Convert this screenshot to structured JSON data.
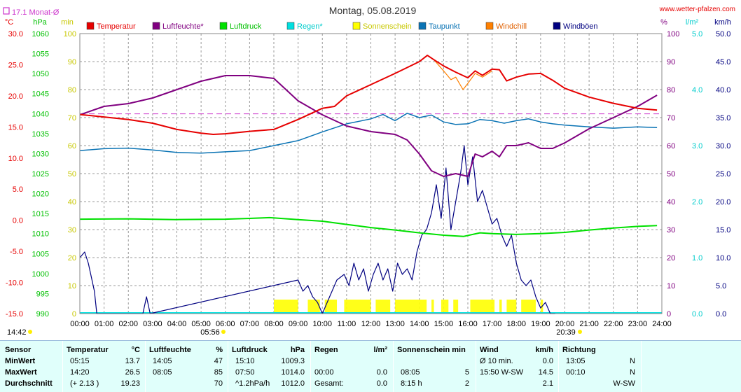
{
  "header": {
    "title": "Montag, 05.08.2019",
    "site": "www.wetter-pfalzen.com",
    "monthly_avg_label": "17.1 Monat-Ø",
    "sunrise": "05:56",
    "sunset": "20:39",
    "left_time": "14:42"
  },
  "colors": {
    "temperature": "#e60000",
    "humidity": "#800080",
    "pressure": "#00e000",
    "rain": "#00e0e0",
    "sunshine": "#ffff00",
    "dewpoint": "#0a73b4",
    "windchill": "#ff8000",
    "gusts": "#000080",
    "monthly_avg": "#cc33cc",
    "background_table": "#e0fffb"
  },
  "chart_data": {
    "type": "line",
    "title": "Montag, 05.08.2019",
    "axes": {
      "temp": {
        "unit": "°C",
        "min": -15,
        "max": 30,
        "ticks": [
          "30.0",
          "25.0",
          "20.0",
          "15.0",
          "10.0",
          "5.0",
          "0.0",
          "-5.0",
          "-10.0",
          "-15.0"
        ]
      },
      "pressure": {
        "unit": "hPa",
        "min": 990,
        "max": 1060,
        "ticks": [
          "1060",
          "1055",
          "1050",
          "1045",
          "1040",
          "1035",
          "1030",
          "1025",
          "1020",
          "1015",
          "1010",
          "1005",
          "1000",
          "995",
          "990"
        ]
      },
      "sun": {
        "unit": "min",
        "min": 0,
        "max": 100,
        "ticks": [
          "100",
          "90",
          "80",
          "70",
          "60",
          "50",
          "40",
          "30",
          "20",
          "10",
          "0"
        ]
      },
      "humidity": {
        "unit": "%",
        "min": 0,
        "max": 100,
        "ticks": [
          "100",
          "90",
          "80",
          "70",
          "60",
          "50",
          "40",
          "30",
          "20",
          "10",
          "0"
        ]
      },
      "rain": {
        "unit": "l/m²",
        "min": 0,
        "max": 5,
        "ticks": [
          "5.0",
          "4.0",
          "3.0",
          "2.0",
          "1.0",
          "0.0"
        ]
      },
      "wind": {
        "unit": "km/h",
        "min": 0,
        "max": 50,
        "ticks": [
          "50.0",
          "45.0",
          "40.0",
          "35.0",
          "30.0",
          "25.0",
          "20.0",
          "15.0",
          "10.0",
          "5.0",
          "0.0"
        ]
      }
    },
    "x_labels": [
      "00:00",
      "01:00",
      "02:00",
      "03:00",
      "04:00",
      "05:00",
      "06:00",
      "07:00",
      "08:00",
      "09:00",
      "10:00",
      "11:00",
      "12:00",
      "13:00",
      "14:00",
      "15:00",
      "16:00",
      "17:00",
      "18:00",
      "19:00",
      "20:00",
      "21:00",
      "22:00",
      "23:00",
      "24:00"
    ],
    "legend": [
      "Temperatur",
      "Luftfeuchte*",
      "Luftdruck",
      "Regen*",
      "Sonnenschein",
      "Taupunkt",
      "Windchill",
      "Windböen"
    ],
    "monthly_avg_temp": 17.1,
    "series": [
      {
        "name": "Temperatur",
        "axis": "temp",
        "x": [
          0,
          1,
          2,
          3,
          4,
          5,
          5.5,
          6,
          7,
          8,
          9,
          10,
          10.5,
          11,
          12,
          13,
          14,
          14.33,
          14.6,
          15,
          15.5,
          16,
          16.3,
          16.6,
          17,
          17.3,
          17.6,
          18,
          18.5,
          19,
          19.5,
          20,
          21,
          22,
          23,
          23.8
        ],
        "y": [
          17.0,
          16.6,
          16.2,
          15.6,
          14.6,
          14.0,
          13.8,
          13.9,
          14.3,
          14.6,
          16.2,
          18.0,
          18.3,
          20.0,
          21.8,
          23.6,
          25.5,
          26.5,
          25.8,
          24.8,
          23.8,
          22.9,
          24.0,
          23.3,
          24.3,
          24.2,
          22.4,
          23.0,
          23.5,
          23.6,
          22.5,
          21.2,
          19.8,
          18.8,
          18.0,
          17.7
        ]
      },
      {
        "name": "Luftfeuchte*",
        "axis": "humidity",
        "x": [
          0,
          1,
          2,
          3,
          4,
          5,
          5.5,
          6,
          7,
          8,
          8.5,
          9,
          10,
          10.5,
          11,
          12,
          13,
          13.5,
          14,
          14.5,
          15,
          15.5,
          16,
          16.3,
          16.6,
          17,
          17.3,
          17.6,
          18,
          18.5,
          19,
          19.5,
          20,
          21,
          22,
          23,
          23.8
        ],
        "y": [
          71,
          74,
          75,
          77,
          80,
          83,
          84,
          85,
          85,
          84,
          80,
          76,
          71,
          69,
          67,
          65,
          64,
          62,
          57,
          51,
          49,
          50,
          49,
          57,
          56,
          58,
          56,
          60,
          60,
          61,
          59,
          59,
          61,
          66,
          70,
          74,
          78
        ]
      },
      {
        "name": "Luftdruck",
        "axis": "pressure",
        "x": [
          0,
          2,
          4,
          6,
          7,
          7.83,
          9,
          10,
          11,
          12,
          13,
          14,
          15,
          15.83,
          16.5,
          17,
          18,
          19,
          20,
          21,
          22,
          23,
          23.8
        ],
        "y": [
          1013.6,
          1013.7,
          1013.5,
          1013.6,
          1013.8,
          1014.0,
          1013.5,
          1013.1,
          1012.3,
          1011.5,
          1010.9,
          1010.2,
          1009.6,
          1009.3,
          1010.2,
          1010.0,
          1009.8,
          1010.0,
          1010.3,
          1010.9,
          1011.4,
          1011.8,
          1012.0
        ]
      },
      {
        "name": "Taupunkt",
        "axis": "temp",
        "x": [
          0,
          1,
          2,
          3,
          4,
          5,
          6,
          7,
          8,
          9,
          10,
          11,
          12,
          12.5,
          13,
          13.5,
          14,
          14.5,
          15,
          15.5,
          16,
          16.5,
          17,
          17.5,
          18,
          18.5,
          19,
          19.5,
          20,
          21,
          22,
          23,
          23.8
        ],
        "y": [
          11.2,
          11.5,
          11.6,
          11.3,
          10.9,
          10.8,
          11.0,
          11.2,
          12.0,
          12.8,
          14.2,
          15.5,
          16.3,
          17.0,
          16.0,
          17.2,
          16.5,
          16.9,
          15.8,
          15.4,
          15.5,
          16.2,
          16.0,
          15.6,
          16.0,
          16.3,
          15.8,
          15.5,
          15.3,
          15.0,
          14.8,
          15.0,
          14.9
        ]
      },
      {
        "name": "Windchill",
        "axis": "temp",
        "x": [
          14.6,
          15,
          15.3,
          15.5,
          15.8,
          16,
          16.3,
          16.6,
          17
        ],
        "y": [
          25.8,
          24.0,
          22.6,
          23.0,
          21.0,
          22.0,
          23.6,
          23.0,
          24.0
        ]
      },
      {
        "name": "Windböen",
        "axis": "wind",
        "x": [
          0,
          0.2,
          0.35,
          0.6,
          0.7,
          2.6,
          2.75,
          2.9,
          9.0,
          9.2,
          9.4,
          9.6,
          9.8,
          10.0,
          10.3,
          10.6,
          10.9,
          11.1,
          11.3,
          11.5,
          11.7,
          11.9,
          12.1,
          12.3,
          12.5,
          12.7,
          12.9,
          13.1,
          13.3,
          13.5,
          13.7,
          13.9,
          14.1,
          14.3,
          14.5,
          14.7,
          14.9,
          15.1,
          15.3,
          15.5,
          15.7,
          15.85,
          16.0,
          16.2,
          16.4,
          16.6,
          16.8,
          17.0,
          17.2,
          17.4,
          17.6,
          17.8,
          18.0,
          18.2,
          18.4,
          18.6,
          18.8,
          19.0,
          19.2,
          19.4,
          19.6
        ],
        "y": [
          10,
          11,
          9,
          4,
          0,
          0,
          3,
          0,
          6,
          4,
          5,
          3,
          2,
          0,
          3,
          6,
          7,
          5,
          9,
          6,
          8,
          4,
          7,
          9,
          6,
          8,
          4,
          9,
          7,
          8,
          6,
          11,
          14,
          15,
          18,
          23,
          17,
          26,
          15,
          20,
          25,
          30,
          23,
          28,
          20,
          22,
          19,
          16,
          17,
          14,
          12,
          14,
          9,
          6,
          5,
          6,
          3,
          1,
          2,
          0,
          0
        ]
      }
    ],
    "sunshine_blocks": [
      [
        8.0,
        9.0
      ],
      [
        9.4,
        9.9
      ],
      [
        10.1,
        10.6
      ],
      [
        10.9,
        12.0
      ],
      [
        12.2,
        12.8
      ],
      [
        13.0,
        14.3
      ],
      [
        14.5,
        14.6
      ],
      [
        14.9,
        15.2
      ],
      [
        15.4,
        15.6
      ],
      [
        16.1,
        17.1
      ],
      [
        17.3,
        17.4
      ],
      [
        17.6,
        18.0
      ],
      [
        18.2,
        18.8
      ],
      [
        19.0,
        19.1
      ]
    ]
  },
  "table": {
    "headers": {
      "sensor": "Sensor",
      "temp": "Temperatur",
      "temp_unit": "°C",
      "hum": "Luftfeuchte",
      "hum_unit": "%",
      "press": "Luftdruck",
      "press_unit": "hPa",
      "rain": "Regen",
      "rain_unit": "l/m²",
      "sun": "Sonnenschein min",
      "wind": "Wind",
      "wind_unit": "km/h",
      "dir": "Richtung"
    },
    "rows": [
      {
        "label": "MinWert",
        "t_time": "05:15",
        "t_val": "13.7",
        "h_time": "14:05",
        "h_val": "47",
        "p_time": "15:10",
        "p_val": "1009.3",
        "r_time": "",
        "r_val": "",
        "s_time": "",
        "s_val": "",
        "w_label": "Ø 10 min.",
        "w_val": "0.0",
        "d_time": "13:05",
        "d_val": "N"
      },
      {
        "label": "MaxWert",
        "t_time": "14:20",
        "t_val": "26.5",
        "h_time": "08:05",
        "h_val": "85",
        "p_time": "07:50",
        "p_val": "1014.0",
        "r_time": "00:00",
        "r_val": "0.0",
        "s_time": "08:05",
        "s_val": "5",
        "w_label": "15:50   W-SW",
        "w_val": "14.5",
        "d_time": "00:10",
        "d_val": "N"
      },
      {
        "label": "Durchschnitt",
        "t_time": "(+ 2.13 )",
        "t_val": "19.23",
        "h_time": "",
        "h_val": "70",
        "p_time": "^1.2hPa/h",
        "p_val": "1012.0",
        "r_time": "Gesamt:",
        "r_val": "0.0",
        "s_time": "8:15 h",
        "s_val": "2",
        "w_label": "",
        "w_val": "2.1",
        "d_time": "",
        "d_val": "W-SW"
      }
    ]
  }
}
